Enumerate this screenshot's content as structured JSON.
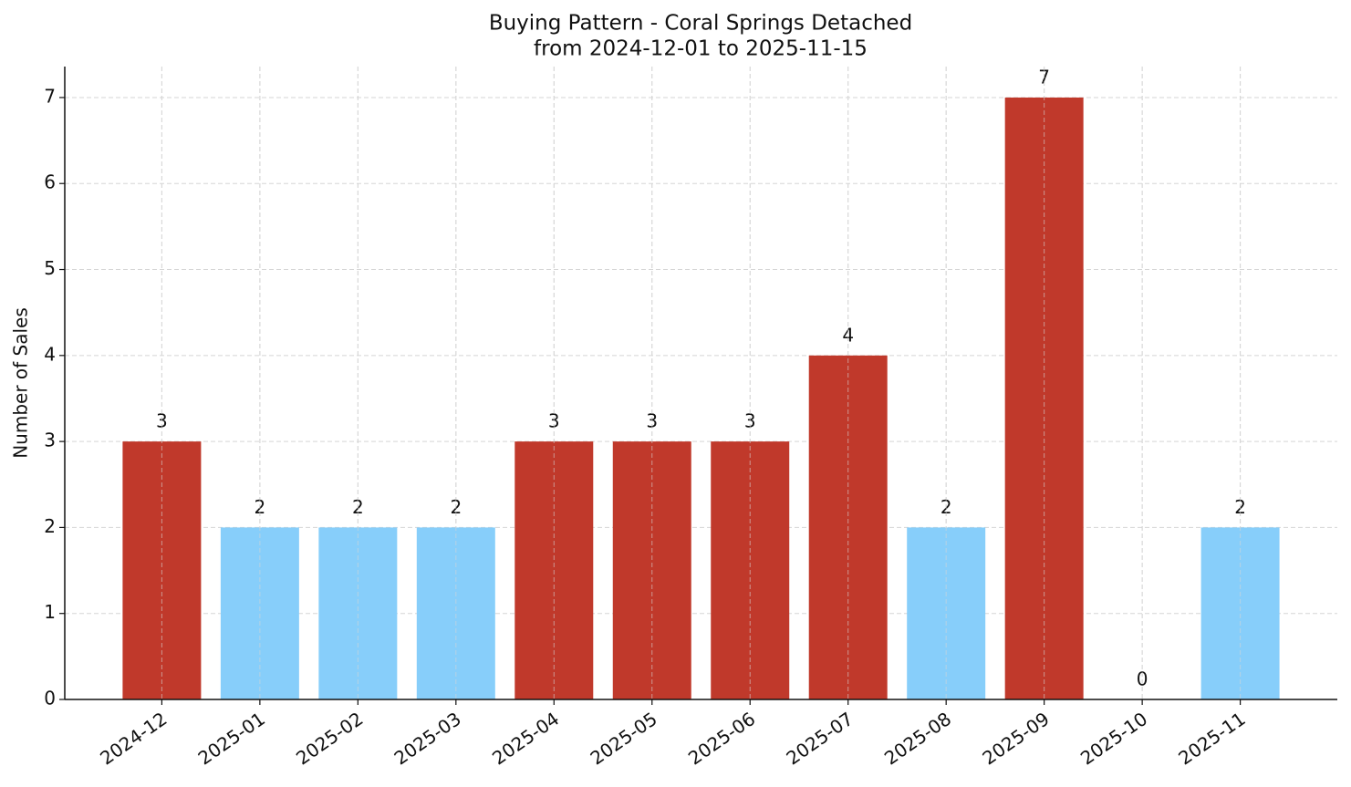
{
  "chart_data": {
    "type": "bar",
    "title": "Buying Pattern - Coral Springs Detached",
    "subtitle": "from 2024-12-01 to 2025-11-15",
    "y_label": "Number of Sales",
    "categories": [
      "2024-12",
      "2025-01",
      "2025-02",
      "2025-03",
      "2025-04",
      "2025-05",
      "2025-06",
      "2025-07",
      "2025-08",
      "2025-09",
      "2025-10",
      "2025-11"
    ],
    "values": [
      3,
      2,
      2,
      2,
      3,
      3,
      3,
      4,
      2,
      7,
      0,
      2
    ],
    "colors": [
      "#c0392b",
      "#87cefa",
      "#87cefa",
      "#87cefa",
      "#c0392b",
      "#c0392b",
      "#c0392b",
      "#c0392b",
      "#87cefa",
      "#c0392b",
      "#87cefa",
      "#87cefa"
    ],
    "ylim": [
      0,
      7.36
    ],
    "yticks": [
      0,
      1,
      2,
      3,
      4,
      5,
      6,
      7
    ],
    "grid": true
  }
}
